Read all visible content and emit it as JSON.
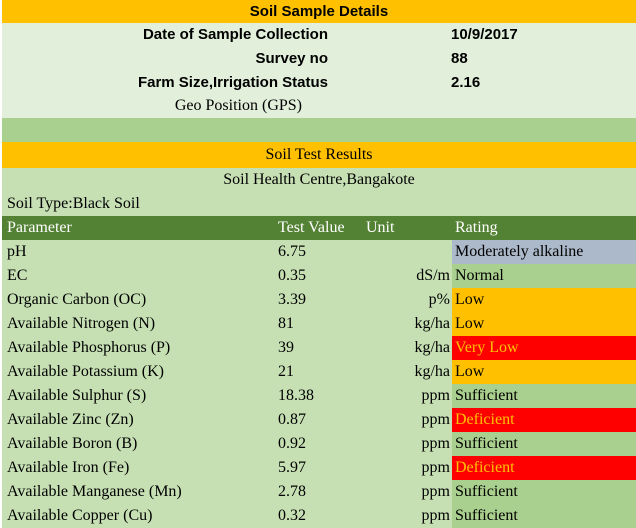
{
  "title": "Soil Sample Details",
  "details": [
    {
      "label": "Date of Sample Collection",
      "value": "10/9/2017"
    },
    {
      "label": "Survey no",
      "value": "88"
    },
    {
      "label": "Farm Size,Irrigation Status",
      "value": "2.16"
    }
  ],
  "geo_label": "Geo Position (GPS)",
  "results_title": "Soil Test Results",
  "centre": "Soil Health Centre,Bangakote",
  "soil_type": "Soil Type:Black Soil",
  "headers": {
    "parameter": "Parameter",
    "test_value": "Test Value",
    "unit": "Unit",
    "rating": "Rating"
  },
  "colors": {
    "orange": "#ffc000",
    "light_green": "#c6e0b4",
    "mid_green": "#a9d08e",
    "dark_green": "#548235",
    "pale_green": "#e2efda",
    "blue_grey": "#acb9ca",
    "red": "#ff0000"
  },
  "rows": [
    {
      "parameter": "pH",
      "value": "6.75",
      "unit": "",
      "rating": "Moderately alkaline",
      "rating_bg": "#acb9ca",
      "rating_fg": "#000000"
    },
    {
      "parameter": "EC",
      "value": "0.35",
      "unit": "dS/m",
      "rating": "Normal",
      "rating_bg": "#a9d08e",
      "rating_fg": "#000000"
    },
    {
      "parameter": "Organic Carbon (OC)",
      "value": "3.39",
      "unit": "p%",
      "rating": "Low",
      "rating_bg": "#ffc000",
      "rating_fg": "#000000"
    },
    {
      "parameter": "Available Nitrogen (N)",
      "value": "81",
      "unit": "kg/ha",
      "rating": "Low",
      "rating_bg": "#ffc000",
      "rating_fg": "#000000"
    },
    {
      "parameter": "Available Phosphorus (P)",
      "value": "39",
      "unit": "kg/ha",
      "rating": "Very Low",
      "rating_bg": "#ff0000",
      "rating_fg": "#ffc000"
    },
    {
      "parameter": "Available Potassium (K)",
      "value": "21",
      "unit": "kg/ha",
      "rating": "Low",
      "rating_bg": "#ffc000",
      "rating_fg": "#000000"
    },
    {
      "parameter": "Available Sulphur (S)",
      "value": "18.38",
      "unit": "ppm",
      "rating": "Sufficient",
      "rating_bg": "#a9d08e",
      "rating_fg": "#000000"
    },
    {
      "parameter": "Available Zinc (Zn)",
      "value": "0.87",
      "unit": "ppm",
      "rating": "Deficient",
      "rating_bg": "#ff0000",
      "rating_fg": "#ffc000"
    },
    {
      "parameter": "Available Boron (B)",
      "value": "0.92",
      "unit": "ppm",
      "rating": "Sufficient",
      "rating_bg": "#a9d08e",
      "rating_fg": "#000000"
    },
    {
      "parameter": "Available Iron (Fe)",
      "value": "5.97",
      "unit": "ppm",
      "rating": "Deficient",
      "rating_bg": "#ff0000",
      "rating_fg": "#ffc000"
    },
    {
      "parameter": "Available Manganese (Mn)",
      "value": "2.78",
      "unit": "ppm",
      "rating": "Sufficient",
      "rating_bg": "#a9d08e",
      "rating_fg": "#000000"
    },
    {
      "parameter": "Available Copper (Cu)",
      "value": "0.32",
      "unit": "ppm",
      "rating": "Sufficient",
      "rating_bg": "#a9d08e",
      "rating_fg": "#000000"
    }
  ]
}
